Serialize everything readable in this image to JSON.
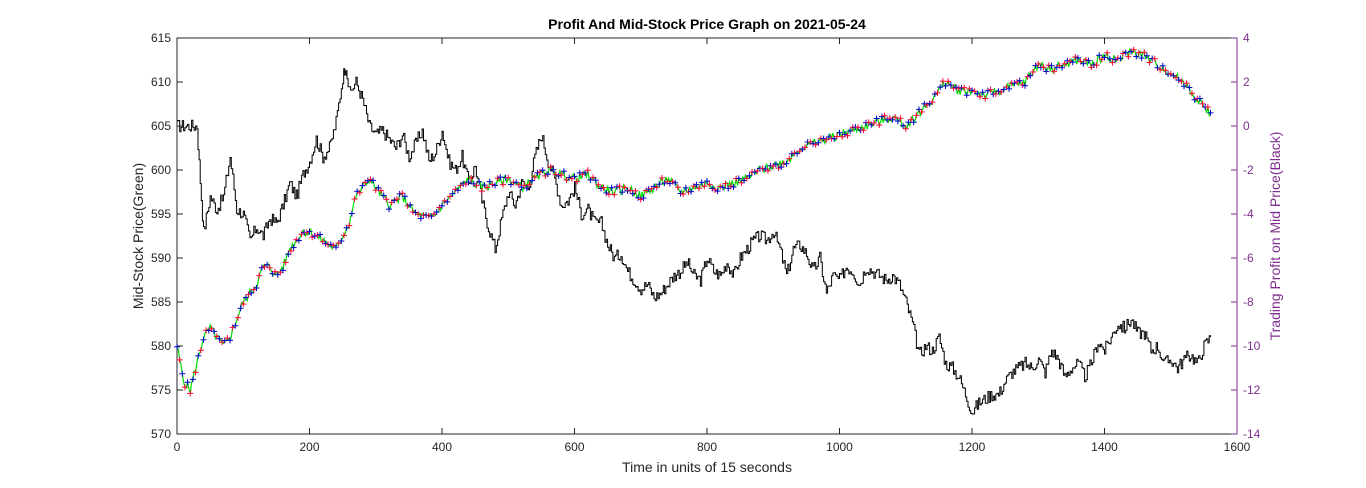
{
  "chart_data": {
    "type": "line",
    "title": "Profit And Mid-Stock Price Graph on 2021-05-24",
    "xlabel": "Time in units of 15 seconds",
    "ylabel_left": "Mid-Stock Price(Green)",
    "ylabel_right": "Trading Profit on Mid Price(Black)",
    "xlim": [
      0,
      1600
    ],
    "ylim_left": [
      570,
      615
    ],
    "ylim_right": [
      -14,
      4
    ],
    "x_ticks": [
      "0",
      "200",
      "400",
      "600",
      "800",
      "1000",
      "1200",
      "1400",
      "1600"
    ],
    "y_left_ticks": [
      "570",
      "575",
      "580",
      "585",
      "590",
      "595",
      "600",
      "605",
      "610",
      "615"
    ],
    "y_right_ticks": [
      "-14",
      "-12",
      "-10",
      "-8",
      "-6",
      "-4",
      "-2",
      "0",
      "2",
      "4"
    ],
    "grid": false,
    "colors": {
      "price": "#00e000",
      "profit": "#000000",
      "buy_marker": "#0000cc",
      "sell_marker": "#ff0033",
      "right_axis": "#7e2f8e",
      "left_axis": "#262626"
    },
    "series": [
      {
        "name": "Mid-Stock Price (Green)",
        "axis": "left",
        "x": [
          0,
          10,
          20,
          30,
          40,
          50,
          60,
          70,
          80,
          90,
          100,
          110,
          120,
          130,
          140,
          150,
          160,
          170,
          180,
          190,
          200,
          220,
          240,
          260,
          270,
          280,
          290,
          300,
          320,
          340,
          360,
          380,
          390,
          400,
          420,
          440,
          460,
          480,
          500,
          520,
          540,
          560,
          580,
          600,
          620,
          640,
          660,
          680,
          700,
          720,
          740,
          760,
          780,
          800,
          820,
          840,
          860,
          880,
          900,
          920,
          940,
          960,
          980,
          1000,
          1020,
          1040,
          1060,
          1080,
          1100,
          1120,
          1140,
          1160,
          1180,
          1200,
          1220,
          1240,
          1260,
          1280,
          1300,
          1320,
          1340,
          1360,
          1380,
          1400,
          1420,
          1440,
          1460,
          1480,
          1500,
          1520,
          1540,
          1560
        ],
        "y": [
          580,
          576,
          575,
          578,
          581,
          582,
          581,
          580,
          581,
          583,
          585,
          586,
          587,
          589,
          589,
          588,
          589,
          591,
          592,
          593,
          593,
          592,
          591,
          594,
          597,
          598,
          599,
          598,
          596,
          597,
          595,
          594.5,
          595,
          596,
          597.5,
          599,
          598,
          598.5,
          599,
          598,
          599,
          600,
          599.5,
          599,
          599.5,
          598,
          597.5,
          598,
          597,
          598,
          599,
          597.5,
          598,
          598.5,
          598,
          598.5,
          599,
          600,
          600.5,
          601,
          602.5,
          603,
          603.5,
          604,
          604.5,
          605,
          605.5,
          606,
          605,
          606.5,
          608,
          610,
          609,
          609,
          608.5,
          609,
          609.5,
          610,
          612,
          611.5,
          612,
          612.5,
          612,
          613,
          612.5,
          613.5,
          613,
          612,
          611,
          610,
          608,
          606.5
        ]
      },
      {
        "name": "Trading Profit on Mid Price (Black)",
        "axis": "right",
        "x": [
          0,
          10,
          20,
          30,
          35,
          40,
          50,
          60,
          70,
          80,
          90,
          100,
          110,
          120,
          130,
          140,
          150,
          160,
          170,
          180,
          190,
          200,
          210,
          220,
          230,
          240,
          250,
          255,
          260,
          270,
          280,
          290,
          300,
          310,
          320,
          330,
          340,
          350,
          360,
          370,
          380,
          390,
          400,
          410,
          420,
          430,
          440,
          450,
          460,
          470,
          480,
          490,
          500,
          510,
          520,
          530,
          540,
          550,
          560,
          570,
          580,
          590,
          600,
          610,
          620,
          630,
          640,
          650,
          660,
          670,
          680,
          690,
          700,
          710,
          720,
          730,
          740,
          750,
          760,
          770,
          780,
          790,
          800,
          810,
          820,
          830,
          840,
          850,
          860,
          870,
          880,
          890,
          900,
          910,
          920,
          930,
          940,
          950,
          960,
          970,
          980,
          990,
          1000,
          1010,
          1020,
          1030,
          1040,
          1050,
          1060,
          1070,
          1080,
          1090,
          1100,
          1110,
          1120,
          1130,
          1140,
          1150,
          1160,
          1170,
          1180,
          1190,
          1200,
          1210,
          1220,
          1230,
          1240,
          1250,
          1260,
          1270,
          1280,
          1290,
          1300,
          1310,
          1320,
          1330,
          1340,
          1350,
          1360,
          1370,
          1380,
          1390,
          1400,
          1410,
          1420,
          1430,
          1440,
          1450,
          1460,
          1470,
          1480,
          1490,
          1500,
          1510,
          1520,
          1530,
          1540,
          1550,
          1560
        ],
        "y": [
          0,
          0,
          0,
          0,
          -2.5,
          -4.8,
          -3.2,
          -3.8,
          -3.2,
          -1.4,
          -3.8,
          -4.0,
          -5.2,
          -4.6,
          -5.0,
          -4.2,
          -4.4,
          -3.6,
          -2.6,
          -3.2,
          -2.2,
          -1.6,
          -0.6,
          -1.4,
          -1.0,
          0.2,
          2.2,
          2.8,
          1.5,
          2.0,
          1.2,
          0.0,
          -0.4,
          -0.2,
          -0.6,
          -1.0,
          -0.4,
          -1.4,
          -0.8,
          -0.2,
          -1.6,
          -1.2,
          -0.2,
          -1.6,
          -2.0,
          -1.4,
          -2.6,
          -1.8,
          -3.4,
          -4.6,
          -5.6,
          -4.2,
          -3.0,
          -3.6,
          -2.6,
          -2.8,
          -1.4,
          -0.4,
          -1.6,
          -2.4,
          -3.6,
          -3.4,
          -2.8,
          -4.0,
          -3.8,
          -4.4,
          -4.4,
          -5.4,
          -6.0,
          -5.8,
          -6.6,
          -7.0,
          -7.4,
          -7.2,
          -7.8,
          -7.6,
          -7.2,
          -6.8,
          -6.6,
          -6.2,
          -6.8,
          -7.0,
          -6.0,
          -6.6,
          -6.8,
          -6.2,
          -6.8,
          -6.0,
          -5.6,
          -5.2,
          -5.0,
          -5.2,
          -4.8,
          -5.6,
          -6.8,
          -5.6,
          -5.4,
          -5.8,
          -6.6,
          -6.0,
          -7.6,
          -6.8,
          -7.0,
          -6.4,
          -6.6,
          -7.2,
          -6.4,
          -6.6,
          -6.8,
          -7.0,
          -6.8,
          -7.2,
          -8.0,
          -9.0,
          -10.4,
          -10.0,
          -10.2,
          -9.6,
          -10.8,
          -11.0,
          -11.4,
          -12.2,
          -13.0,
          -12.6,
          -12.4,
          -12.2,
          -12.2,
          -11.6,
          -11.2,
          -11.0,
          -10.8,
          -11.0,
          -10.6,
          -11.2,
          -10.2,
          -10.6,
          -11.4,
          -11.0,
          -10.8,
          -11.4,
          -10.8,
          -9.8,
          -10.2,
          -9.6,
          -9.0,
          -9.2,
          -8.8,
          -9.4,
          -9.4,
          -10.2,
          -10.0,
          -10.8,
          -10.6,
          -11.0,
          -10.6,
          -10.4,
          -10.8,
          -10.0,
          -9.6
        ]
      }
    ]
  }
}
